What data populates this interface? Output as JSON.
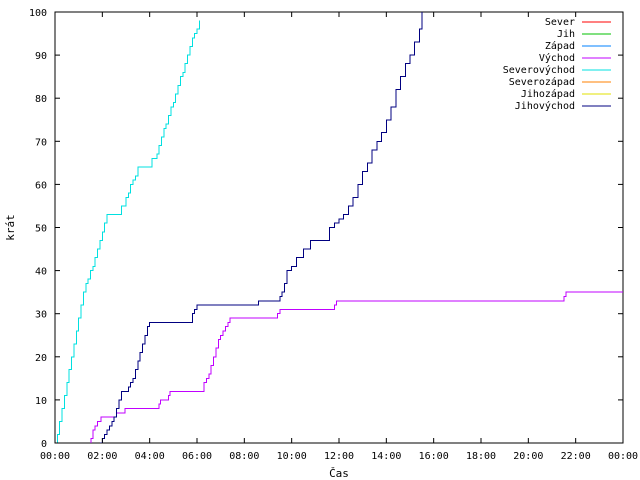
{
  "chart_data": {
    "type": "line",
    "title": "",
    "xlabel": "Čas",
    "ylabel": "krát",
    "xlim": [
      0,
      24
    ],
    "ylim": [
      0,
      100
    ],
    "grid": false,
    "legend_placement": "top-right",
    "x_tick_labels": [
      "00:00",
      "02:00",
      "04:00",
      "06:00",
      "08:00",
      "10:00",
      "12:00",
      "14:00",
      "16:00",
      "18:00",
      "20:00",
      "22:00",
      "00:00"
    ],
    "y_tick_labels": [
      "0",
      "10",
      "20",
      "30",
      "40",
      "50",
      "60",
      "70",
      "80",
      "90",
      "100"
    ],
    "series": [
      {
        "name": "Sever",
        "color": "#ff0000",
        "x": [],
        "y": []
      },
      {
        "name": "Jih",
        "color": "#00c000",
        "x": [],
        "y": []
      },
      {
        "name": "Západ",
        "color": "#0080ff",
        "x": [],
        "y": []
      },
      {
        "name": "Východ",
        "color": "#c000ff",
        "x": [
          1.5,
          1.52,
          1.6,
          1.7,
          1.8,
          1.95,
          2.1,
          2.6,
          2.6,
          2.9,
          2.95,
          3.0,
          3.05,
          4.3,
          4.4,
          4.45,
          4.5,
          4.7,
          4.8,
          4.85,
          5.0,
          6.2,
          6.3,
          6.4,
          6.5,
          6.6,
          6.7,
          6.8,
          6.9,
          7.0,
          7.1,
          7.2,
          7.3,
          7.4,
          7.5,
          9.3,
          9.4,
          9.5,
          9.6,
          11.8,
          11.9,
          21.5,
          21.6,
          24.0
        ],
        "y": [
          0,
          1,
          3,
          4,
          5,
          6,
          6,
          6,
          7,
          7,
          8,
          8,
          8,
          8,
          9,
          10,
          10,
          10,
          11,
          12,
          12,
          12,
          14,
          15,
          16,
          18,
          20,
          22,
          24,
          25,
          26,
          27,
          28,
          29,
          29,
          29,
          30,
          31,
          31,
          32,
          33,
          34,
          35,
          35
        ]
      },
      {
        "name": "Severovýchod",
        "color": "#00e0e0",
        "x": [
          0.0,
          0.1,
          0.2,
          0.3,
          0.4,
          0.5,
          0.6,
          0.7,
          0.8,
          0.9,
          1.0,
          1.1,
          1.2,
          1.3,
          1.4,
          1.5,
          1.6,
          1.7,
          1.8,
          1.9,
          2.0,
          2.1,
          2.2,
          2.3,
          2.4,
          2.5,
          2.6,
          2.8,
          3.0,
          3.1,
          3.2,
          3.3,
          3.4,
          3.5,
          3.6,
          3.7,
          3.8,
          3.9,
          4.0,
          4.1,
          4.2,
          4.3,
          4.4,
          4.5,
          4.6,
          4.7,
          4.8,
          4.9,
          5.0,
          5.1,
          5.2,
          5.3,
          5.4,
          5.5,
          5.6,
          5.7,
          5.8,
          5.9,
          6.0,
          6.1
        ],
        "y": [
          0,
          2,
          5,
          8,
          11,
          14,
          17,
          20,
          23,
          26,
          29,
          32,
          35,
          37,
          38,
          40,
          41,
          43,
          45,
          47,
          49,
          51,
          53,
          53,
          53,
          53,
          53,
          55,
          57,
          58,
          60,
          61,
          62,
          64,
          64,
          64,
          64,
          64,
          64,
          66,
          66,
          67,
          69,
          71,
          73,
          74,
          76,
          78,
          79,
          81,
          83,
          85,
          86,
          88,
          90,
          92,
          94,
          95,
          96,
          98
        ]
      },
      {
        "name": "Severozápad",
        "color": "#ff8000",
        "x": [],
        "y": []
      },
      {
        "name": "Jihozápad",
        "color": "#e0e000",
        "x": [],
        "y": []
      },
      {
        "name": "Jihovýchod",
        "color": "#000080",
        "x": [
          1.9,
          2.0,
          2.1,
          2.2,
          2.3,
          2.4,
          2.5,
          2.6,
          2.7,
          2.8,
          2.9,
          3.0,
          3.1,
          3.2,
          3.3,
          3.4,
          3.5,
          3.6,
          3.7,
          3.8,
          3.9,
          4.0,
          4.1,
          5.7,
          5.8,
          5.9,
          6.0,
          8.5,
          8.6,
          9.5,
          9.6,
          9.7,
          9.8,
          10.0,
          10.2,
          10.5,
          10.8,
          11.2,
          11.6,
          11.8,
          12.0,
          12.2,
          12.4,
          12.6,
          12.8,
          13.0,
          13.2,
          13.4,
          13.6,
          13.8,
          14.0,
          14.2,
          14.4,
          14.6,
          14.8,
          15.0,
          15.2,
          15.4,
          15.5
        ],
        "y": [
          0,
          1,
          2,
          3,
          4,
          5,
          6,
          8,
          10,
          12,
          12,
          12,
          13,
          14,
          15,
          17,
          19,
          21,
          23,
          25,
          27,
          28,
          28,
          28,
          30,
          31,
          32,
          32,
          33,
          34,
          35,
          37,
          40,
          41,
          43,
          45,
          47,
          47,
          50,
          51,
          52,
          53,
          55,
          57,
          60,
          63,
          65,
          68,
          70,
          72,
          75,
          78,
          82,
          85,
          88,
          90,
          93,
          96,
          100
        ]
      }
    ]
  }
}
